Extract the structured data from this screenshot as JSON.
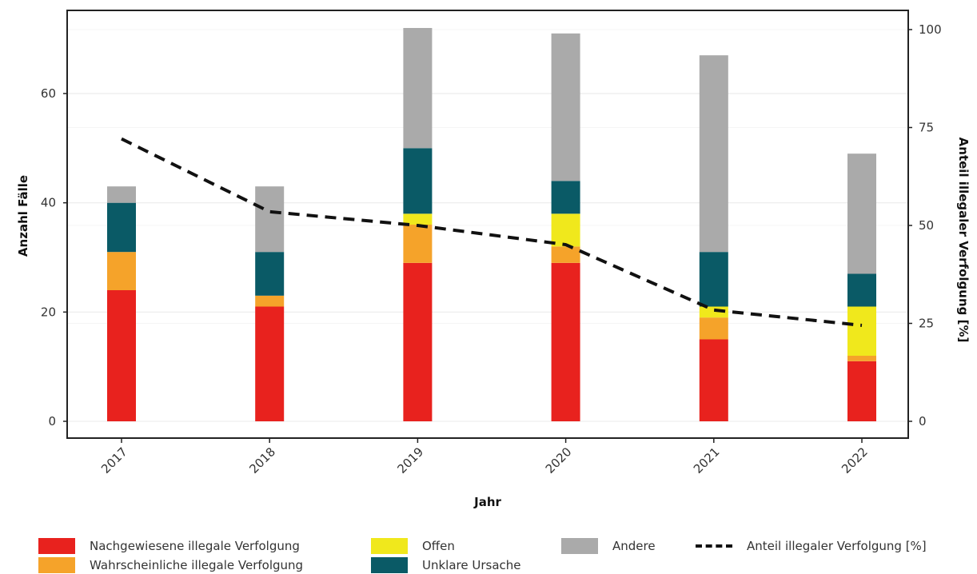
{
  "chart_data": {
    "type": "bar",
    "stacked": true,
    "categories": [
      "2017",
      "2018",
      "2019",
      "2020",
      "2021",
      "2022"
    ],
    "xlabel": "Jahr",
    "ylabel": "Anzahl Fälle",
    "y2label": "Anteil illegaler Verfolgung [%]",
    "ylim": [
      0,
      72
    ],
    "y2lim": [
      0,
      100
    ],
    "yticks": [
      0,
      20,
      40,
      60
    ],
    "yticklabels": [
      "0",
      "20",
      "40",
      "60"
    ],
    "y2ticks": [
      0,
      25,
      50,
      75,
      100
    ],
    "y2ticklabels": [
      "0",
      "25",
      "50",
      "75",
      "100"
    ],
    "grid": true,
    "legend_position": "bottom",
    "series": [
      {
        "name": "Nachgewiesene illegale Verfolgung",
        "color": "#e8221e",
        "values": [
          24,
          21,
          29,
          29,
          15,
          11
        ]
      },
      {
        "name": "Wahrscheinliche illegale Verfolgung",
        "color": "#f5a32a",
        "values": [
          7,
          2,
          7,
          3,
          4,
          1
        ]
      },
      {
        "name": "Offen",
        "color": "#f0e81c",
        "values": [
          0,
          0,
          2,
          6,
          2,
          9
        ]
      },
      {
        "name": "Unklare Ursache",
        "color": "#0a5a66",
        "values": [
          9,
          8,
          12,
          6,
          10,
          6
        ]
      },
      {
        "name": "Andere",
        "color": "#aaaaaa",
        "values": [
          3,
          12,
          22,
          27,
          36,
          22
        ]
      }
    ],
    "line_series": {
      "name": "Anteil illegaler Verfolgung [%]",
      "color": "#111111",
      "style": "dashed",
      "axis": "right",
      "values": [
        72.1,
        53.5,
        50.0,
        45.1,
        28.4,
        24.5
      ]
    }
  },
  "legend": {
    "items": [
      {
        "label": "Nachgewiesene illegale Verfolgung",
        "color": "#e8221e",
        "kind": "box"
      },
      {
        "label": "Wahrscheinliche illegale Verfolgung",
        "color": "#f5a32a",
        "kind": "box"
      },
      {
        "label": "Offen",
        "color": "#f0e81c",
        "kind": "box"
      },
      {
        "label": "Unklare Ursache",
        "color": "#0a5a66",
        "kind": "box"
      },
      {
        "label": "Andere",
        "color": "#aaaaaa",
        "kind": "box"
      },
      {
        "label": "Anteil illegaler Verfolgung [%]",
        "color": "#111111",
        "kind": "dashed-line"
      }
    ]
  }
}
